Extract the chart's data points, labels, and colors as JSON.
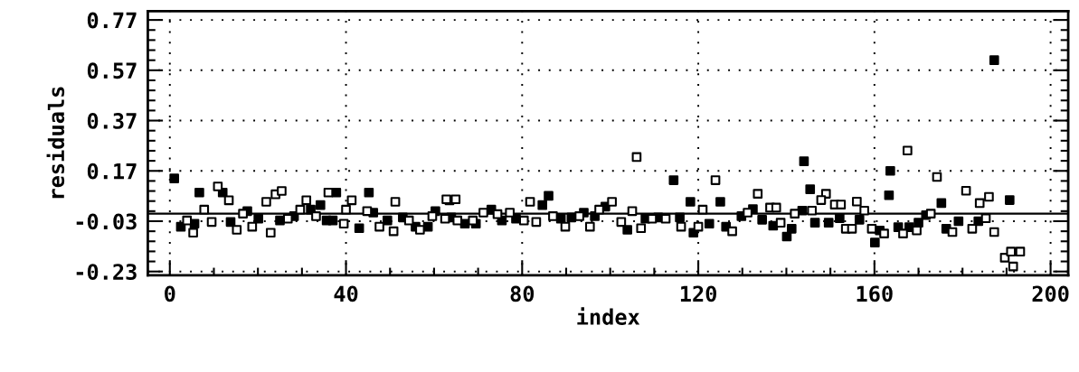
{
  "chart_data": {
    "type": "scatter",
    "xlabel": "index",
    "ylabel": "residuals",
    "xlim": [
      -5,
      204
    ],
    "ylim": [
      -0.245,
      0.805
    ],
    "xticks": [
      0,
      40,
      80,
      120,
      160,
      200
    ],
    "yticks": [
      -0.23,
      -0.03,
      0.17,
      0.37,
      0.57,
      0.77
    ],
    "grid": true,
    "marker": "square",
    "ref_lines": [
      {
        "axis": "y",
        "value": 0,
        "color": "#000000",
        "line_style": "solid"
      }
    ],
    "series": [
      {
        "color": "#000000",
        "x": [
          1,
          6.7,
          35.6,
          37.8,
          37,
          45.2,
          86,
          114.4,
          118.2,
          122.5,
          125,
          134.5,
          140.1,
          144,
          145.4,
          149.6,
          160.1,
          163.3,
          163.6,
          171.7,
          175.2,
          187.2,
          190.7,
          2.5,
          5.6,
          12,
          13.8,
          17.6,
          20.1,
          25,
          28.2,
          32,
          34.2,
          43,
          46.2,
          49.4,
          52.9,
          55.8,
          58.6,
          60.3,
          63.9,
          67,
          69.5,
          73,
          75.4,
          78.6,
          84.6,
          88.8,
          91.2,
          94,
          96.5,
          98.9,
          103.9,
          108,
          110.9,
          115.8,
          118.9,
          126.3,
          129.8,
          132.4,
          137,
          141.2,
          143.6,
          146.5,
          152.1,
          156.6,
          161.2,
          165.4,
          167.9,
          170,
          176.3,
          179.1,
          183.6
        ],
        "values": [
          0.14,
          0.084,
          -0.027,
          0.084,
          -0.027,
          0.084,
          0.071,
          0.133,
          0.047,
          -0.04,
          0.047,
          -0.024,
          -0.091,
          0.208,
          0.097,
          -0.036,
          -0.115,
          0.073,
          0.17,
          -0.006,
          0.042,
          0.61,
          0.054,
          -0.052,
          -0.04,
          0.084,
          -0.033,
          0.01,
          -0.02,
          -0.027,
          -0.01,
          0.016,
          0.034,
          -0.058,
          0.004,
          -0.027,
          -0.015,
          -0.052,
          -0.052,
          0.01,
          -0.015,
          -0.04,
          -0.04,
          0.016,
          -0.027,
          -0.02,
          0.034,
          -0.02,
          -0.015,
          0.004,
          -0.01,
          0.028,
          -0.064,
          -0.02,
          -0.015,
          -0.015,
          -0.076,
          -0.052,
          -0.01,
          0.018,
          -0.048,
          -0.06,
          0.012,
          -0.036,
          -0.018,
          -0.024,
          -0.067,
          -0.054,
          -0.054,
          -0.036,
          -0.06,
          -0.03,
          -0.03
        ]
      },
      {
        "color": "#ffffff",
        "x": [
          5.3,
          7.8,
          10.9,
          15.2,
          21.9,
          22.9,
          24,
          31,
          36,
          39.5,
          41.3,
          51.2,
          63.5,
          62.8,
          64.9,
          81.8,
          83.2,
          100.4,
          106,
          107,
          121,
          123.9,
          133.5,
          136.3,
          149,
          151,
          152.4,
          153.5,
          156,
          159.4,
          167.5,
          174.2,
          180.8,
          183.9,
          186,
          187.2,
          189.6,
          191,
          193.1,
          191.5,
          3.9,
          9.5,
          13.4,
          16.6,
          18.7,
          25.4,
          26.8,
          29.6,
          33.2,
          40,
          44.8,
          47.6,
          50.8,
          54.3,
          56.8,
          59.6,
          62.5,
          65.3,
          68.8,
          71.2,
          74.4,
          77.2,
          80.4,
          87,
          89.8,
          93,
          95.4,
          97.5,
          102.5,
          105,
          109.5,
          112.6,
          116.1,
          120,
          127.7,
          131.2,
          137.7,
          138.7,
          141.9,
          145.8,
          147.9,
          154.9,
          157.7,
          162.2,
          166.5,
          169.6,
          172.8,
          177.7,
          182.2,
          185.3
        ],
        "values": [
          -0.076,
          0.016,
          0.108,
          -0.064,
          0.047,
          -0.076,
          0.077,
          0.053,
          0.084,
          -0.04,
          0.053,
          0.047,
          0.053,
          0.057,
          0.057,
          0.047,
          -0.033,
          0.047,
          0.225,
          -0.058,
          0.016,
          0.133,
          0.079,
          0.024,
          0.079,
          0.036,
          0.036,
          -0.06,
          0.048,
          -0.06,
          0.251,
          0.146,
          0.091,
          0.042,
          0.067,
          -0.073,
          -0.175,
          -0.151,
          -0.151,
          -0.21,
          -0.027,
          -0.033,
          0.053,
          0,
          -0.052,
          0.09,
          -0.02,
          0.016,
          -0.01,
          0.016,
          0.01,
          -0.052,
          -0.07,
          -0.027,
          -0.064,
          -0.01,
          -0.02,
          -0.027,
          -0.027,
          0.004,
          -0.002,
          0.004,
          -0.027,
          -0.01,
          -0.052,
          -0.01,
          -0.052,
          0.016,
          -0.033,
          0.01,
          -0.02,
          -0.02,
          -0.052,
          -0.052,
          -0.07,
          0.004,
          0.024,
          -0.036,
          0,
          0.012,
          0.054,
          -0.06,
          0.012,
          -0.079,
          -0.079,
          -0.067,
          0,
          -0.073,
          -0.06,
          -0.018
        ]
      }
    ]
  }
}
